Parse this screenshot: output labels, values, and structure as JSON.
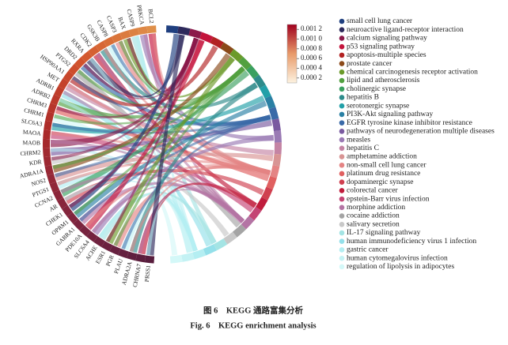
{
  "chart_data": {
    "type": "chord",
    "caption_cn": "图 6　KEGG 通路富集分析",
    "caption_en": "Fig. 6　KEGG enrichment analysis",
    "genes": [
      "BCL2",
      "PRKCA",
      "CASP9",
      "BAX",
      "CASP3",
      "CASP8",
      "GSK3B",
      "CDK2",
      "RXRA",
      "DRD2",
      "PTGS2",
      "HSP90AA1",
      "MET",
      "ADRB1",
      "ADRB2",
      "CHRM3",
      "CHRM1",
      "SLC6A3",
      "MAOA",
      "MAOB",
      "CHRM2",
      "KDR",
      "ADRA1A",
      "NOS2",
      "PTGS1",
      "CCNA2",
      "AR",
      "CHEK1",
      "OPRM1",
      "GABRA1",
      "PDE10A",
      "SLC6A4",
      "ACHE",
      "ESR1",
      "PGR",
      "PLAU",
      "ADRA2A",
      "CHRNA7",
      "PRSS1"
    ],
    "series": [
      {
        "name": "small cell lung cancer",
        "color": "#1f3f7f"
      },
      {
        "name": "neuroactive ligand-receptor interaction",
        "color": "#2e2a5c"
      },
      {
        "name": "calcium signaling pathway",
        "color": "#8b1a4a"
      },
      {
        "name": "p53 signaling pathway",
        "color": "#c4143c"
      },
      {
        "name": "apoptosis-multiple species",
        "color": "#b22222"
      },
      {
        "name": "prostate cancer",
        "color": "#8b4a1a"
      },
      {
        "name": "chemical carcinogenesis receptor activation",
        "color": "#6b9a2a"
      },
      {
        "name": "lipid and atherosclerosis",
        "color": "#52a040"
      },
      {
        "name": "cholinergic synapse",
        "color": "#3aa060"
      },
      {
        "name": "hepatitis B",
        "color": "#2e8b8b"
      },
      {
        "name": "serotonergic synapse",
        "color": "#22a0a8"
      },
      {
        "name": "PI3K-Akt signaling pathway",
        "color": "#2a80a4"
      },
      {
        "name": "EGFR tyrosine kinase inhibitor resistance",
        "color": "#3a6aa8"
      },
      {
        "name": "pathways of neurodegeneration multiple diseases",
        "color": "#7a5aa0"
      },
      {
        "name": "measles",
        "color": "#9a7ab4"
      },
      {
        "name": "hepatitis C",
        "color": "#c484a4"
      },
      {
        "name": "amphetamine addiction",
        "color": "#d89494"
      },
      {
        "name": "non-small cell lung cancer",
        "color": "#e48484"
      },
      {
        "name": "platinum drug resistance",
        "color": "#e06060"
      },
      {
        "name": "dopaminergic synapse",
        "color": "#d04050"
      },
      {
        "name": "colorectal cancer",
        "color": "#c01c3c"
      },
      {
        "name": "epstein-Barr virus infection",
        "color": "#c44474"
      },
      {
        "name": "morphine addiction",
        "color": "#b474a4"
      },
      {
        "name": "cocaine addiction",
        "color": "#a4a4a4"
      },
      {
        "name": "salivary secretion",
        "color": "#c8c8c8"
      },
      {
        "name": "IL-17 signaling pathway",
        "color": "#a4e4e4"
      },
      {
        "name": "human immunodeficiency virus 1 infection",
        "color": "#94e0ea"
      },
      {
        "name": "gastric cancer",
        "color": "#b4eef2"
      },
      {
        "name": "human cytomegalovirus infection",
        "color": "#c4f2f4"
      },
      {
        "name": "regulation of lipolysis in adipocytes",
        "color": "#d4f8f8"
      }
    ],
    "colorbar": {
      "clim": [
        0.0001,
        0.0013
      ],
      "colors": [
        "#fdf3e0",
        "#a0001e"
      ],
      "ticks": [
        {
          "value": 0.0012,
          "label": "0.001 2"
        },
        {
          "value": 0.001,
          "label": "0.001 0"
        },
        {
          "value": 0.0008,
          "label": "0.000 8"
        },
        {
          "value": 0.0006,
          "label": "0.000 6"
        },
        {
          "value": 0.0004,
          "label": "0.000 4"
        },
        {
          "value": 0.0002,
          "label": "0.000 2"
        }
      ]
    }
  }
}
